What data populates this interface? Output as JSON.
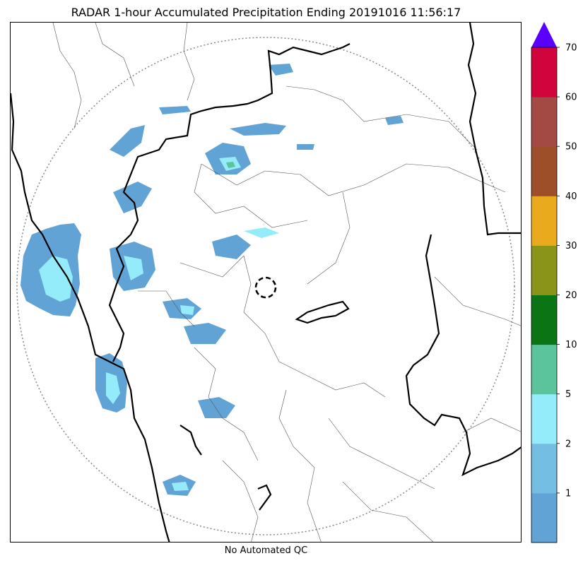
{
  "title": "RADAR 1-hour Accumulated Precipitation Ending 20191016 11:56:17",
  "footer": "No Automated QC",
  "colorbar": {
    "tick_labels": [
      "1",
      "2",
      "5",
      "10",
      "20",
      "30",
      "40",
      "50",
      "60",
      "70"
    ],
    "bins": [
      {
        "color": "#62a3d6"
      },
      {
        "color": "#74bde3"
      },
      {
        "color": "#94ecfb"
      },
      {
        "color": "#5cc49c"
      },
      {
        "color": "#0b7415"
      },
      {
        "color": "#8a9418"
      },
      {
        "color": "#e9aa1e"
      },
      {
        "color": "#9d4f2a"
      },
      {
        "color": "#a44a44"
      },
      {
        "color": "#d2043e"
      }
    ],
    "extend_color": "#5a00ff"
  },
  "colors": {
    "boundary_thick": "#000000",
    "boundary_thin": "#555555",
    "range_ring": "#888888",
    "radar_site": "#000000"
  }
}
